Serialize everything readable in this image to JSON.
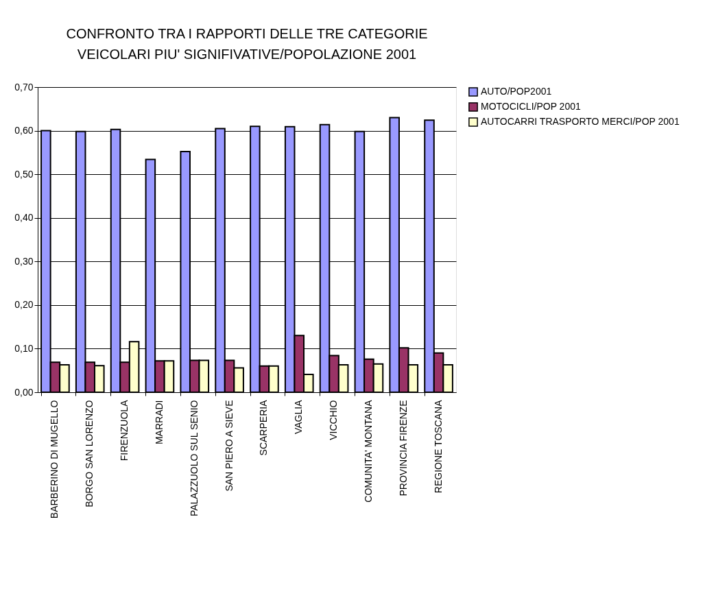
{
  "chart_data": {
    "type": "bar",
    "title": "CONFRONTO TRA I RAPPORTI DELLE TRE CATEGORIE VEICOLARI PIU' SIGNIFIVATIVE/POPOLAZIONE 2001",
    "categories": [
      "BARBERINO DI MUGELLO",
      "BORGO SAN LORENZO",
      "FIRENZUOLA",
      "MARRADI",
      "PALAZZUOLO SUL SENIO",
      "SAN PIERO A SIEVE",
      "SCARPERIA",
      "VAGLIA",
      "VICCHIO",
      "COMUNITA' MONTANA",
      "PROVINCIA FIRENZE",
      "REGIONE TOSCANA"
    ],
    "series": [
      {
        "name": "AUTO/POP2001",
        "color": "#9999ff",
        "values": [
          0.6,
          0.598,
          0.603,
          0.534,
          0.552,
          0.605,
          0.61,
          0.609,
          0.614,
          0.598,
          0.63,
          0.624
        ]
      },
      {
        "name": "MOTOCICLI/POP 2001",
        "color": "#993366",
        "values": [
          0.069,
          0.069,
          0.069,
          0.072,
          0.073,
          0.073,
          0.06,
          0.13,
          0.084,
          0.076,
          0.102,
          0.09
        ]
      },
      {
        "name": "AUTOCARRI TRASPORTO MERCI/POP 2001",
        "color": "#ffffcc",
        "values": [
          0.063,
          0.061,
          0.116,
          0.072,
          0.073,
          0.056,
          0.06,
          0.041,
          0.063,
          0.065,
          0.063,
          0.063
        ]
      }
    ],
    "ylim": [
      0,
      0.7
    ],
    "yticks": [
      {
        "value": 0,
        "label": "0,00"
      },
      {
        "value": 0.1,
        "label": "0,10"
      },
      {
        "value": 0.2,
        "label": "0,20"
      },
      {
        "value": 0.3,
        "label": "0,30"
      },
      {
        "value": 0.4,
        "label": "0,40"
      },
      {
        "value": 0.5,
        "label": "0,50"
      },
      {
        "value": 0.6,
        "label": "0,60"
      },
      {
        "value": 0.7,
        "label": "0,70"
      }
    ],
    "grid": "y",
    "legend": "right"
  }
}
